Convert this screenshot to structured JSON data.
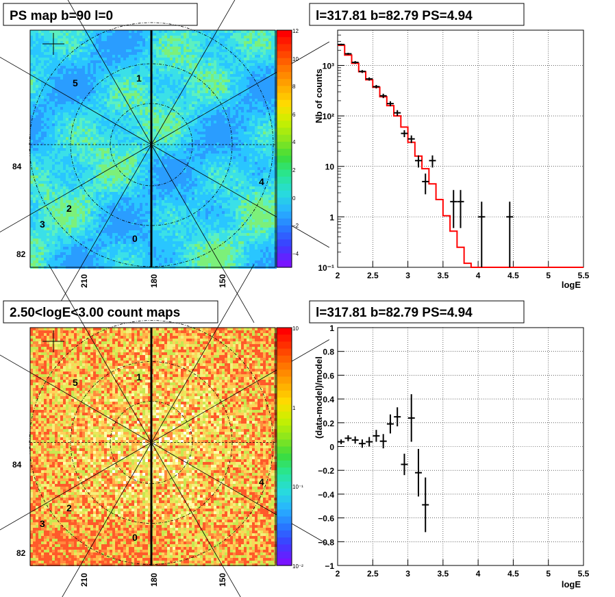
{
  "panels": {
    "map_top": {
      "title": "PS map b=90 l=0",
      "lon_ticks": [
        "210",
        "180",
        "150"
      ],
      "lat_ticks": [
        "84",
        "82"
      ],
      "colorbar_ticks": [
        "12",
        "10",
        "8",
        "6",
        "4",
        "2",
        "0",
        "−2",
        "−4"
      ],
      "sector_labels": [
        "5",
        "1",
        "4",
        "2",
        "3",
        "0"
      ]
    },
    "map_bottom": {
      "title": "2.50<logE<3.00 count maps",
      "lon_ticks": [
        "210",
        "180",
        "150"
      ],
      "lat_ticks": [
        "84",
        "82"
      ],
      "colorbar_ticks": [
        "10",
        "1",
        "10⁻¹",
        "10⁻²"
      ],
      "sector_labels": [
        "5",
        "1",
        "4",
        "2",
        "3",
        "0"
      ]
    },
    "spectrum": {
      "title": "l=317.81 b=82.79 PS=4.94"
    },
    "residual": {
      "title": "l=317.81 b=82.79 PS=4.94"
    }
  },
  "chart_data": [
    {
      "type": "heatmap",
      "title": "PS map b=90 l=0",
      "colorbar_range": [
        -5,
        12
      ],
      "colors": [
        "#7f00ff",
        "#3344ff",
        "#29c6ff",
        "#33ee66",
        "#aaee00",
        "#ffdd00",
        "#ff8800",
        "#ff2200"
      ]
    },
    {
      "type": "heatmap",
      "title": "2.50<logE<3.00 count maps",
      "colorbar_scale": "log",
      "colorbar_range": [
        0.01,
        10
      ]
    },
    {
      "type": "line",
      "title": "l=317.81 b=82.79 PS=4.94",
      "xlabel": "logE",
      "ylabel": "Nb of counts",
      "xlim": [
        2,
        5.5
      ],
      "ylim": [
        0.1,
        5000
      ],
      "yscale": "log",
      "x_ticks": [
        "2",
        "2.5",
        "3",
        "3.5",
        "4",
        "4.5",
        "5",
        "5.5"
      ],
      "y_ticks": [
        "10⁻¹",
        "1",
        "10",
        "10²",
        "10³"
      ],
      "grid": true,
      "series": [
        {
          "kind": "data-points",
          "color": "#000000",
          "points": [
            {
              "x": 2.05,
              "y": 2600,
              "ylo": 2500,
              "yhi": 2700
            },
            {
              "x": 2.15,
              "y": 1700,
              "ylo": 1620,
              "yhi": 1780
            },
            {
              "x": 2.25,
              "y": 1150,
              "ylo": 1080,
              "yhi": 1220
            },
            {
              "x": 2.35,
              "y": 760,
              "ylo": 710,
              "yhi": 810
            },
            {
              "x": 2.45,
              "y": 540,
              "ylo": 500,
              "yhi": 580
            },
            {
              "x": 2.55,
              "y": 380,
              "ylo": 350,
              "yhi": 410
            },
            {
              "x": 2.65,
              "y": 250,
              "ylo": 225,
              "yhi": 275
            },
            {
              "x": 2.75,
              "y": 175,
              "ylo": 155,
              "yhi": 195
            },
            {
              "x": 2.85,
              "y": 115,
              "ylo": 100,
              "yhi": 130
            },
            {
              "x": 2.95,
              "y": 45,
              "ylo": 38,
              "yhi": 52
            },
            {
              "x": 3.05,
              "y": 35,
              "ylo": 29,
              "yhi": 41
            },
            {
              "x": 3.15,
              "y": 13,
              "ylo": 9.5,
              "yhi": 16.5
            },
            {
              "x": 3.25,
              "y": 5,
              "ylo": 2.8,
              "yhi": 7.2
            },
            {
              "x": 3.35,
              "y": 13,
              "ylo": 9.5,
              "yhi": 16.5
            },
            {
              "x": 3.65,
              "y": 2,
              "ylo": 0.6,
              "yhi": 3.4
            },
            {
              "x": 3.75,
              "y": 2,
              "ylo": 0.6,
              "yhi": 3.4
            },
            {
              "x": 4.05,
              "y": 1,
              "ylo": 0.1,
              "yhi": 2.0
            },
            {
              "x": 4.45,
              "y": 1,
              "ylo": 0.1,
              "yhi": 2.0
            }
          ]
        },
        {
          "kind": "model-histogram",
          "color": "#ff0000",
          "bin_edges": [
            2.0,
            2.1,
            2.2,
            2.3,
            2.4,
            2.5,
            2.6,
            2.7,
            2.8,
            2.9,
            3.0,
            3.1,
            3.2,
            3.3,
            3.4,
            3.5,
            3.6,
            3.7,
            3.8,
            3.9,
            5.5
          ],
          "values": [
            2500,
            1600,
            1100,
            750,
            520,
            370,
            240,
            160,
            100,
            60,
            30,
            16,
            9,
            4.5,
            2.2,
            1.05,
            0.52,
            0.25,
            0.12,
            0.1
          ]
        }
      ]
    },
    {
      "type": "scatter",
      "title": "l=317.81 b=82.79 PS=4.94",
      "xlabel": "logE",
      "ylabel": "(data-model)/model",
      "xlim": [
        2,
        5.5
      ],
      "ylim": [
        -1,
        1
      ],
      "x_ticks": [
        "2",
        "2.5",
        "3",
        "3.5",
        "4",
        "4.5",
        "5",
        "5.5"
      ],
      "y_ticks": [
        "−1",
        "−0.8",
        "−0.6",
        "−0.4",
        "−0.2",
        "0",
        "0.2",
        "0.4",
        "0.6",
        "0.8",
        "1"
      ],
      "grid": true,
      "points": [
        {
          "x": 2.05,
          "y": 0.04,
          "err": 0.02
        },
        {
          "x": 2.15,
          "y": 0.07,
          "err": 0.025
        },
        {
          "x": 2.25,
          "y": 0.055,
          "err": 0.03
        },
        {
          "x": 2.35,
          "y": 0.025,
          "err": 0.035
        },
        {
          "x": 2.45,
          "y": 0.04,
          "err": 0.04
        },
        {
          "x": 2.55,
          "y": 0.09,
          "err": 0.05
        },
        {
          "x": 2.65,
          "y": 0.045,
          "err": 0.06
        },
        {
          "x": 2.75,
          "y": 0.19,
          "err": 0.08
        },
        {
          "x": 2.85,
          "y": 0.25,
          "err": 0.08
        },
        {
          "x": 2.95,
          "y": -0.15,
          "err": 0.09
        },
        {
          "x": 3.05,
          "y": 0.24,
          "err": 0.2
        },
        {
          "x": 3.15,
          "y": -0.22,
          "err": 0.2
        },
        {
          "x": 3.25,
          "y": -0.49,
          "err": 0.23
        }
      ]
    }
  ]
}
